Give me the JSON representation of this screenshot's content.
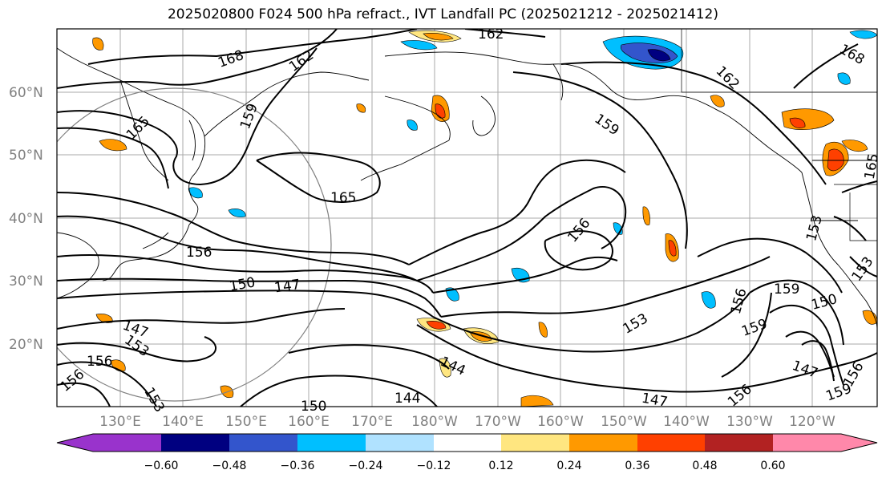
{
  "title": "2025020800 F024 500 hPa refract., IVT Landfall PC (2025021212 - 2025021412)",
  "lat_ticks": [
    "60°N",
    "50°N",
    "40°N",
    "30°N",
    "20°N"
  ],
  "lon_ticks": [
    "130°E",
    "140°E",
    "150°E",
    "160°E",
    "170°E",
    "180°W",
    "170°W",
    "160°W",
    "150°W",
    "140°W",
    "130°W",
    "120°W"
  ],
  "contour_labels": [
    "162",
    "168",
    "162",
    "162",
    "168",
    "159",
    "159",
    "165",
    "165",
    "165",
    "156",
    "156",
    "153",
    "153",
    "150",
    "147",
    "147",
    "153",
    "156",
    "156",
    "159",
    "150",
    "159",
    "147",
    "144",
    "144",
    "150",
    "147",
    "156",
    "153",
    "153",
    "156",
    "159",
    "156"
  ],
  "colorbar": {
    "ticks": [
      "−0.60",
      "−0.48",
      "−0.36",
      "−0.24",
      "−0.12",
      "0.12",
      "0.24",
      "0.36",
      "0.48",
      "0.60"
    ],
    "colors": [
      "#9933cc",
      "#000080",
      "#3355cc",
      "#00bfff",
      "#b0e2ff",
      "#ffffff",
      "#ffe680",
      "#ff9900",
      "#ff4000",
      "#b22222",
      "#ff88aa"
    ]
  }
}
